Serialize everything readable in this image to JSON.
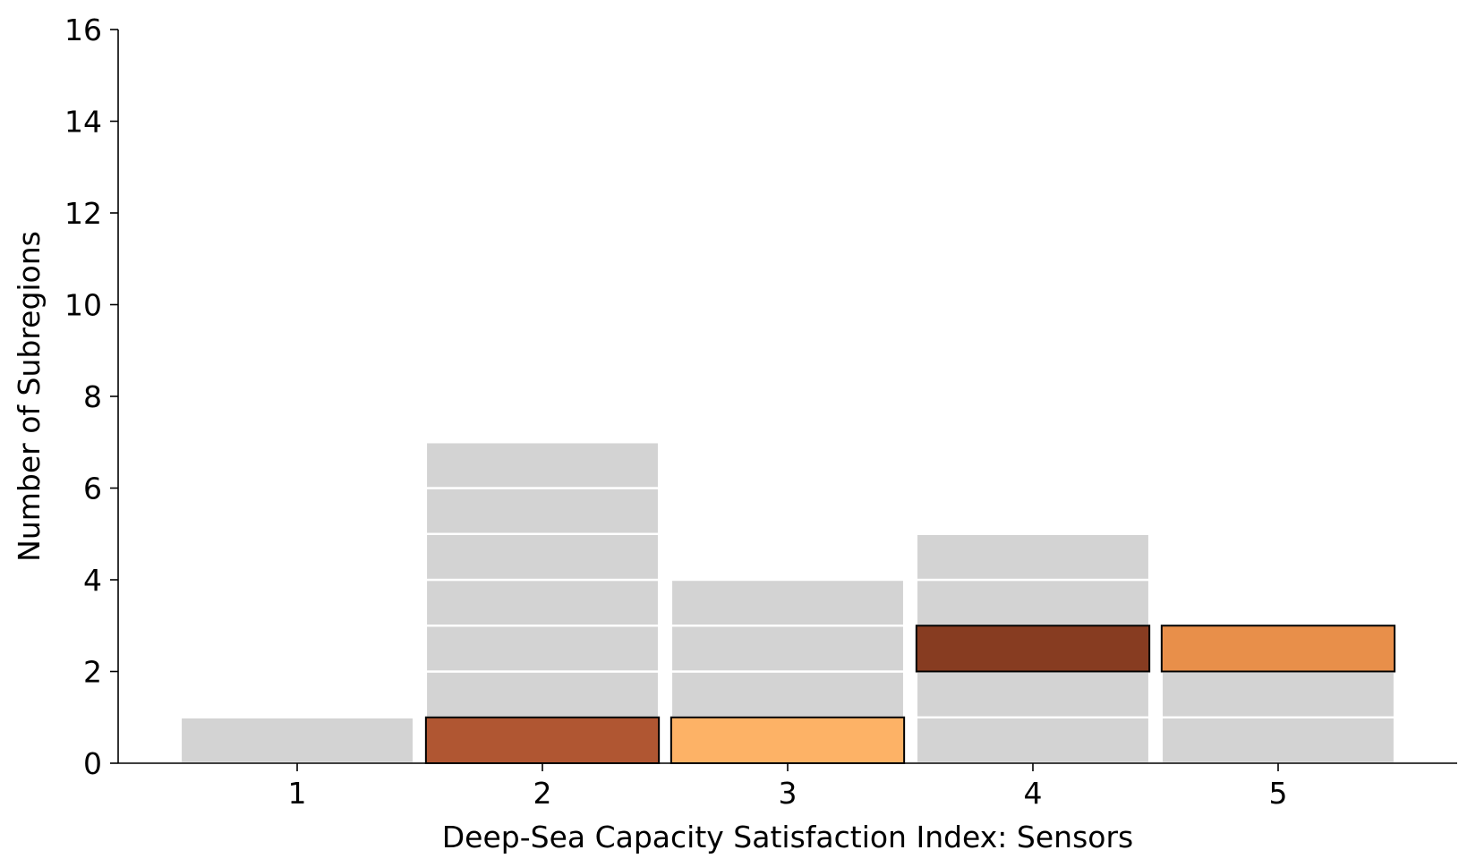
{
  "chart_data": {
    "type": "bar",
    "title": "",
    "xlabel": "Deep-Sea Capacity Satisfaction Index: Sensors",
    "ylabel": "Number of Subregions",
    "categories": [
      "1",
      "2",
      "3",
      "4",
      "5"
    ],
    "xlim": [
      0.27,
      5.73
    ],
    "ylim": [
      0,
      16
    ],
    "yticks": [
      0,
      2,
      4,
      6,
      8,
      10,
      12,
      14,
      16
    ],
    "yticks_labels": [
      "0",
      "2",
      "4",
      "6",
      "8",
      "10",
      "12",
      "14",
      "16"
    ],
    "grid": false,
    "bar_width": 0.95,
    "background_stacks": [
      {
        "category": "1",
        "unit_segments": 1
      },
      {
        "category": "2",
        "unit_segments": 7
      },
      {
        "category": "3",
        "unit_segments": 4
      },
      {
        "category": "4",
        "unit_segments": 5
      },
      {
        "category": "5",
        "unit_segments": 3
      }
    ],
    "background_color": "#d3d3d3",
    "highlights": [
      {
        "category": "2",
        "y0": 0,
        "y1": 1,
        "color": "#b05632"
      },
      {
        "category": "3",
        "y0": 0,
        "y1": 1,
        "color": "#fdb266"
      },
      {
        "category": "4",
        "y0": 2,
        "y1": 3,
        "color": "#873c21"
      },
      {
        "category": "5",
        "y0": 2,
        "y1": 3,
        "color": "#e88f4a"
      }
    ]
  }
}
